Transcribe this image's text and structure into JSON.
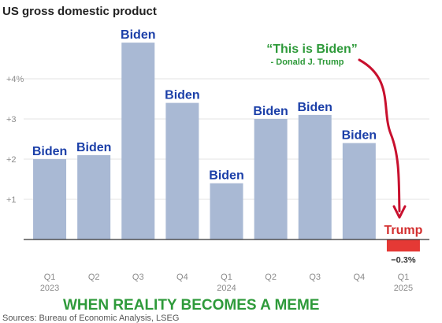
{
  "chart_data": {
    "type": "bar",
    "title": "US gross domestic product",
    "categories": [
      {
        "quarter": "Q1",
        "year": "2023"
      },
      {
        "quarter": "Q2",
        "year": ""
      },
      {
        "quarter": "Q3",
        "year": ""
      },
      {
        "quarter": "Q4",
        "year": ""
      },
      {
        "quarter": "Q1",
        "year": "2024"
      },
      {
        "quarter": "Q2",
        "year": ""
      },
      {
        "quarter": "Q3",
        "year": ""
      },
      {
        "quarter": "Q4",
        "year": ""
      },
      {
        "quarter": "Q1",
        "year": "2025"
      }
    ],
    "values": [
      2.0,
      2.1,
      4.9,
      3.4,
      1.4,
      3.0,
      3.1,
      2.4,
      -0.3
    ],
    "bar_labels": [
      "Biden",
      "Biden",
      "Biden",
      "Biden",
      "Biden",
      "Biden",
      "Biden",
      "Biden",
      "Trump"
    ],
    "data_labels": [
      "",
      "",
      "",
      "",
      "",
      "",
      "",
      "",
      "−0.3%"
    ],
    "yticks": [
      {
        "value": 1,
        "label": "+1"
      },
      {
        "value": 2,
        "label": "+2"
      },
      {
        "value": 3,
        "label": "+3"
      },
      {
        "value": 4,
        "label": "+4%"
      }
    ],
    "ylim": [
      -0.3,
      5.2
    ],
    "grid": true,
    "colors": {
      "bar": "#a9b9d4",
      "negative_bar": "#e53935",
      "biden_label": "#1b3fa8",
      "trump_label": "#d32f2f",
      "annotation": "#2e9a3a",
      "arrow": "#c8102e"
    },
    "annotations": {
      "quote": "“This is Biden”",
      "attribution": "- Donald J. Trump",
      "meme_caption": "WHEN REALITY BECOMES A MEME"
    },
    "source": "Sources: Bureau of Economic Analysis, LSEG"
  }
}
